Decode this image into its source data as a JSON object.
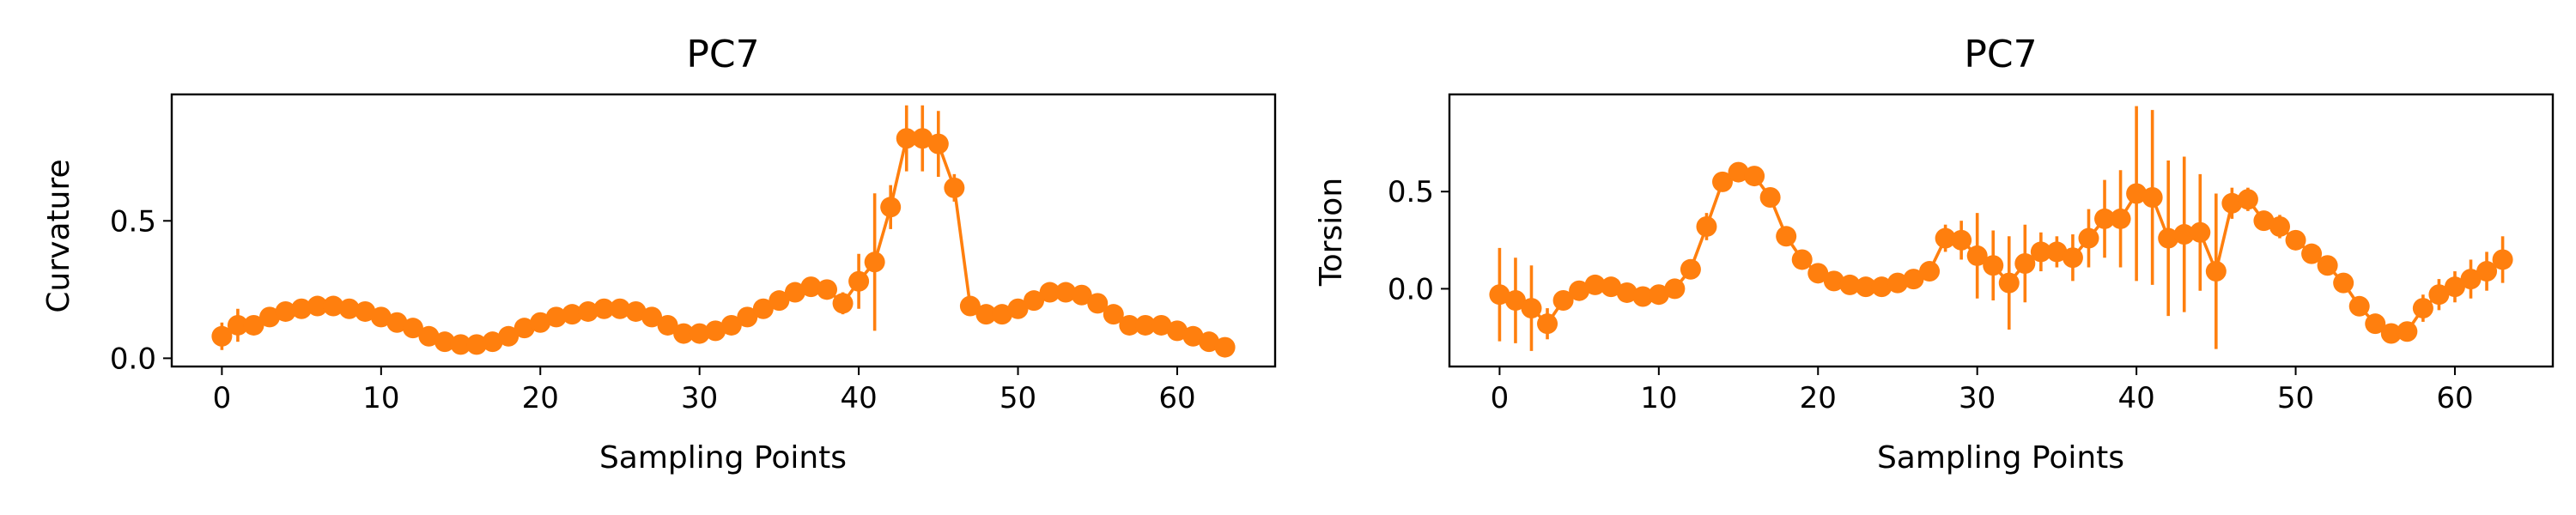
{
  "colors": {
    "series": "#ff7f0e",
    "axes": "#000000",
    "background": "#ffffff"
  },
  "chart_data": [
    {
      "type": "line",
      "title": "PC7",
      "xlabel": "Sampling Points",
      "ylabel": "Curvature",
      "xlim": [
        -3.15,
        66.15
      ],
      "ylim": [
        -0.03,
        0.96
      ],
      "xticks": [
        0,
        10,
        20,
        30,
        40,
        50,
        60
      ],
      "xtick_labels": [
        "0",
        "10",
        "20",
        "30",
        "40",
        "50",
        "60"
      ],
      "yticks": [
        0.0,
        0.5
      ],
      "ytick_labels": [
        "0.0",
        "0.5"
      ],
      "grid": false,
      "series": [
        {
          "name": "PC7",
          "x": [
            0,
            1,
            2,
            3,
            4,
            5,
            6,
            7,
            8,
            9,
            10,
            11,
            12,
            13,
            14,
            15,
            16,
            17,
            18,
            19,
            20,
            21,
            22,
            23,
            24,
            25,
            26,
            27,
            28,
            29,
            30,
            31,
            32,
            33,
            34,
            35,
            36,
            37,
            38,
            39,
            40,
            41,
            42,
            43,
            44,
            45,
            46,
            47,
            48,
            49,
            50,
            51,
            52,
            53,
            54,
            55,
            56,
            57,
            58,
            59,
            60,
            61,
            62,
            63
          ],
          "y": [
            0.08,
            0.12,
            0.12,
            0.15,
            0.17,
            0.18,
            0.19,
            0.19,
            0.18,
            0.17,
            0.15,
            0.13,
            0.11,
            0.08,
            0.06,
            0.05,
            0.05,
            0.06,
            0.08,
            0.11,
            0.13,
            0.15,
            0.16,
            0.17,
            0.18,
            0.18,
            0.17,
            0.15,
            0.12,
            0.09,
            0.09,
            0.1,
            0.12,
            0.15,
            0.18,
            0.21,
            0.24,
            0.26,
            0.25,
            0.2,
            0.28,
            0.35,
            0.55,
            0.8,
            0.8,
            0.78,
            0.62,
            0.19,
            0.16,
            0.16,
            0.18,
            0.21,
            0.24,
            0.24,
            0.23,
            0.2,
            0.16,
            0.12,
            0.12,
            0.12,
            0.1,
            0.08,
            0.06,
            0.04
          ],
          "yerr": [
            0.05,
            0.06,
            0.03,
            0.02,
            0.02,
            0.02,
            0.02,
            0.02,
            0.02,
            0.02,
            0.02,
            0.02,
            0.02,
            0.02,
            0.02,
            0.02,
            0.02,
            0.02,
            0.02,
            0.02,
            0.02,
            0.02,
            0.02,
            0.02,
            0.02,
            0.02,
            0.02,
            0.02,
            0.02,
            0.02,
            0.02,
            0.02,
            0.02,
            0.02,
            0.02,
            0.02,
            0.02,
            0.03,
            0.03,
            0.04,
            0.1,
            0.25,
            0.08,
            0.12,
            0.12,
            0.12,
            0.05,
            0.03,
            0.02,
            0.02,
            0.02,
            0.02,
            0.02,
            0.02,
            0.02,
            0.02,
            0.02,
            0.02,
            0.02,
            0.02,
            0.02,
            0.02,
            0.02,
            0.02
          ]
        }
      ]
    },
    {
      "type": "line",
      "title": "PC7",
      "xlabel": "Sampling Points",
      "ylabel": "Torsion",
      "xlim": [
        -3.15,
        66.15
      ],
      "ylim": [
        -0.4,
        1.0
      ],
      "xticks": [
        0,
        10,
        20,
        30,
        40,
        50,
        60
      ],
      "xtick_labels": [
        "0",
        "10",
        "20",
        "30",
        "40",
        "50",
        "60"
      ],
      "yticks": [
        0.0,
        0.5
      ],
      "ytick_labels": [
        "0.0",
        "0.5"
      ],
      "grid": false,
      "series": [
        {
          "name": "PC7",
          "x": [
            0,
            1,
            2,
            3,
            4,
            5,
            6,
            7,
            8,
            9,
            10,
            11,
            12,
            13,
            14,
            15,
            16,
            17,
            18,
            19,
            20,
            21,
            22,
            23,
            24,
            25,
            26,
            27,
            28,
            29,
            30,
            31,
            32,
            33,
            34,
            35,
            36,
            37,
            38,
            39,
            40,
            41,
            42,
            43,
            44,
            45,
            46,
            47,
            48,
            49,
            50,
            51,
            52,
            53,
            54,
            55,
            56,
            57,
            58,
            59,
            60,
            61,
            62,
            63
          ],
          "y": [
            -0.03,
            -0.06,
            -0.1,
            -0.18,
            -0.06,
            -0.01,
            0.02,
            0.01,
            -0.02,
            -0.04,
            -0.03,
            0.0,
            0.1,
            0.32,
            0.55,
            0.6,
            0.58,
            0.47,
            0.27,
            0.15,
            0.08,
            0.04,
            0.02,
            0.01,
            0.01,
            0.03,
            0.05,
            0.09,
            0.26,
            0.25,
            0.17,
            0.12,
            0.03,
            0.13,
            0.19,
            0.19,
            0.16,
            0.26,
            0.36,
            0.36,
            0.49,
            0.47,
            0.26,
            0.28,
            0.29,
            0.09,
            0.44,
            0.46,
            0.35,
            0.32,
            0.25,
            0.18,
            0.12,
            0.03,
            -0.09,
            -0.18,
            -0.23,
            -0.22,
            -0.1,
            -0.03,
            0.01,
            0.05,
            0.09,
            0.15
          ],
          "yerr": [
            0.24,
            0.22,
            0.22,
            0.08,
            0.04,
            0.03,
            0.03,
            0.03,
            0.03,
            0.03,
            0.03,
            0.03,
            0.05,
            0.07,
            0.04,
            0.05,
            0.04,
            0.05,
            0.04,
            0.03,
            0.03,
            0.03,
            0.03,
            0.03,
            0.03,
            0.03,
            0.03,
            0.04,
            0.07,
            0.1,
            0.22,
            0.18,
            0.24,
            0.2,
            0.1,
            0.08,
            0.12,
            0.15,
            0.2,
            0.25,
            0.45,
            0.45,
            0.4,
            0.4,
            0.3,
            0.4,
            0.08,
            0.06,
            0.05,
            0.06,
            0.05,
            0.04,
            0.04,
            0.04,
            0.04,
            0.04,
            0.04,
            0.05,
            0.07,
            0.08,
            0.08,
            0.1,
            0.1,
            0.12
          ]
        }
      ]
    }
  ]
}
